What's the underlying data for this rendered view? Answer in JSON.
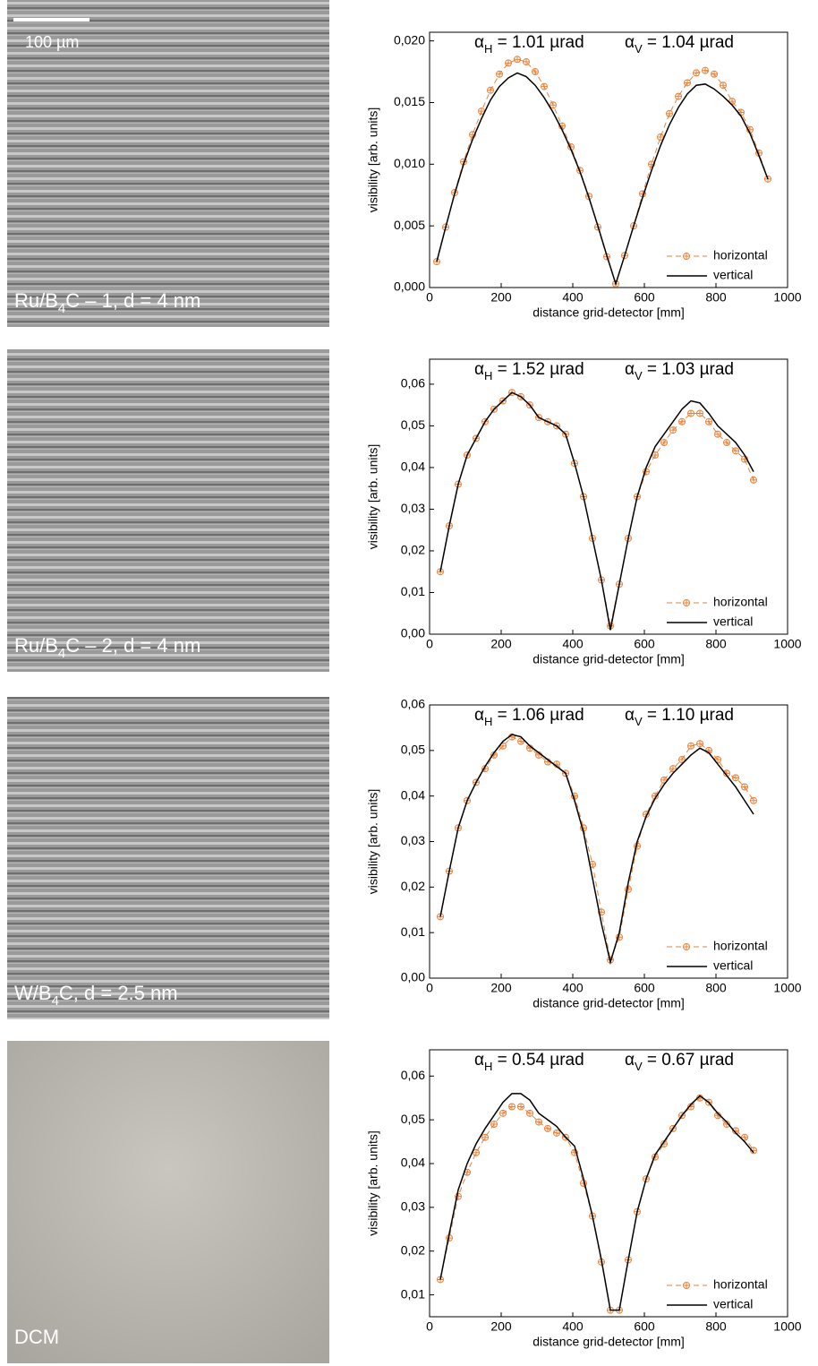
{
  "chart_data": [
    {
      "type": "line",
      "panel_label": {
        "pre": "Ru/B",
        "sub": "4",
        "post": "C – 1, d = 4 nm"
      },
      "scale_bar": "100 µm",
      "annotations": [
        {
          "symbol": "α",
          "sub": "H",
          "text": " = 1.01 µrad"
        },
        {
          "symbol": "α",
          "sub": "V",
          "text": " = 1.04 µrad"
        }
      ],
      "xlabel": "distance grid-detector [mm]",
      "ylabel": "visibility [arb. units]",
      "xlim": [
        0,
        1000
      ],
      "ylim": [
        0,
        0.0207
      ],
      "xticks": [
        0,
        200,
        400,
        600,
        800,
        1000
      ],
      "yticks": [
        {
          "value": 0,
          "label": "0,000"
        },
        {
          "value": 0.005,
          "label": "0,005"
        },
        {
          "value": 0.01,
          "label": "0,010"
        },
        {
          "value": 0.015,
          "label": "0,015"
        },
        {
          "value": 0.02,
          "label": "0,020"
        }
      ],
      "legend": "lower right",
      "x": [
        20,
        45,
        70,
        95,
        120,
        145,
        170,
        195,
        220,
        245,
        270,
        295,
        320,
        345,
        370,
        395,
        420,
        445,
        470,
        495,
        520,
        545,
        570,
        595,
        620,
        645,
        670,
        695,
        720,
        745,
        770,
        795,
        820,
        845,
        870,
        895,
        920,
        945
      ],
      "series": [
        {
          "name": "horizontal",
          "color": "#e8823a",
          "dash": true,
          "marker": "circle-plus",
          "values": [
            0.0021,
            0.0049,
            0.0077,
            0.0102,
            0.0124,
            0.0143,
            0.016,
            0.0173,
            0.0182,
            0.0185,
            0.0183,
            0.0175,
            0.0163,
            0.0148,
            0.0131,
            0.0114,
            0.0095,
            0.0074,
            0.0049,
            0.0025,
            0.0003,
            0.0026,
            0.005,
            0.0076,
            0.01,
            0.0122,
            0.0141,
            0.0155,
            0.0166,
            0.0174,
            0.0176,
            0.0173,
            0.0164,
            0.0151,
            0.0142,
            0.0128,
            0.0109,
            0.0088
          ]
        },
        {
          "name": "vertical",
          "color": "#000000",
          "values": [
            0.0021,
            0.0049,
            0.0076,
            0.01,
            0.012,
            0.0137,
            0.0152,
            0.0163,
            0.017,
            0.0174,
            0.0171,
            0.0164,
            0.0154,
            0.0142,
            0.0128,
            0.0112,
            0.0094,
            0.0073,
            0.005,
            0.0026,
            0.0003,
            0.0026,
            0.005,
            0.0073,
            0.0095,
            0.0115,
            0.0132,
            0.0146,
            0.0157,
            0.0164,
            0.0165,
            0.0161,
            0.0155,
            0.0148,
            0.0139,
            0.0125,
            0.0107,
            0.0088
          ]
        }
      ]
    },
    {
      "type": "line",
      "panel_label": {
        "pre": "Ru/B",
        "sub": "4",
        "post": "C – 2, d = 4 nm"
      },
      "annotations": [
        {
          "symbol": "α",
          "sub": "H",
          "text": " = 1.52 µrad"
        },
        {
          "symbol": "α",
          "sub": "V",
          "text": " = 1.03 µrad"
        }
      ],
      "xlabel": "distance grid-detector [mm]",
      "ylabel": "visibility [arb. units]",
      "xlim": [
        0,
        1000
      ],
      "ylim": [
        0,
        0.066
      ],
      "xticks": [
        0,
        200,
        400,
        600,
        800,
        1000
      ],
      "yticks": [
        {
          "value": 0,
          "label": "0,00"
        },
        {
          "value": 0.01,
          "label": "0,01"
        },
        {
          "value": 0.02,
          "label": "0,02"
        },
        {
          "value": 0.03,
          "label": "0,03"
        },
        {
          "value": 0.04,
          "label": "0,04"
        },
        {
          "value": 0.05,
          "label": "0,05"
        },
        {
          "value": 0.06,
          "label": "0,06"
        }
      ],
      "legend": "lower right",
      "x": [
        30,
        55,
        80,
        105,
        130,
        155,
        180,
        205,
        230,
        255,
        280,
        305,
        330,
        355,
        380,
        405,
        430,
        455,
        480,
        505,
        530,
        555,
        580,
        605,
        630,
        655,
        680,
        705,
        730,
        755,
        780,
        805,
        830,
        855,
        880,
        905
      ],
      "series": [
        {
          "name": "horizontal",
          "color": "#e8823a",
          "dash": true,
          "marker": "circle-plus",
          "values": [
            0.015,
            0.026,
            0.036,
            0.043,
            0.047,
            0.051,
            0.054,
            0.056,
            0.058,
            0.057,
            0.055,
            0.052,
            0.051,
            0.05,
            0.048,
            0.041,
            0.033,
            0.023,
            0.013,
            0.002,
            0.012,
            0.023,
            0.033,
            0.039,
            0.043,
            0.046,
            0.049,
            0.051,
            0.053,
            0.053,
            0.051,
            0.048,
            0.046,
            0.044,
            0.042,
            0.037
          ]
        },
        {
          "name": "vertical",
          "color": "#000000",
          "values": [
            0.015,
            0.026,
            0.036,
            0.043,
            0.047,
            0.051,
            0.054,
            0.056,
            0.058,
            0.057,
            0.055,
            0.052,
            0.051,
            0.05,
            0.048,
            0.041,
            0.033,
            0.023,
            0.013,
            0.001,
            0.012,
            0.023,
            0.033,
            0.04,
            0.045,
            0.048,
            0.051,
            0.054,
            0.056,
            0.0555,
            0.053,
            0.05,
            0.048,
            0.046,
            0.043,
            0.039
          ]
        }
      ]
    },
    {
      "type": "line",
      "panel_label": {
        "pre": "W/B",
        "sub": "4",
        "post": "C, d = 2.5 nm"
      },
      "annotations": [
        {
          "symbol": "α",
          "sub": "H",
          "text": " = 1.06 µrad"
        },
        {
          "symbol": "α",
          "sub": "V",
          "text": " = 1.10 µrad"
        }
      ],
      "xlabel": "distance grid-detector [mm]",
      "ylabel": "visibility [arb. units]",
      "xlim": [
        0,
        1000
      ],
      "ylim": [
        0,
        0.06
      ],
      "xticks": [
        0,
        200,
        400,
        600,
        800,
        1000
      ],
      "yticks": [
        {
          "value": 0,
          "label": "0,00"
        },
        {
          "value": 0.01,
          "label": "0,01"
        },
        {
          "value": 0.02,
          "label": "0,02"
        },
        {
          "value": 0.03,
          "label": "0,03"
        },
        {
          "value": 0.04,
          "label": "0,04"
        },
        {
          "value": 0.05,
          "label": "0,05"
        },
        {
          "value": 0.06,
          "label": "0,06"
        }
      ],
      "legend": "lower right",
      "x": [
        30,
        55,
        80,
        105,
        130,
        155,
        180,
        205,
        230,
        255,
        280,
        305,
        330,
        355,
        380,
        405,
        430,
        455,
        480,
        505,
        530,
        555,
        580,
        605,
        630,
        655,
        680,
        705,
        730,
        755,
        780,
        805,
        830,
        855,
        880,
        905
      ],
      "series": [
        {
          "name": "horizontal",
          "color": "#e8823a",
          "dash": true,
          "marker": "circle-plus",
          "values": [
            0.0135,
            0.0235,
            0.033,
            0.039,
            0.043,
            0.046,
            0.049,
            0.051,
            0.053,
            0.052,
            0.0505,
            0.049,
            0.0475,
            0.047,
            0.045,
            0.04,
            0.033,
            0.025,
            0.0145,
            0.004,
            0.009,
            0.0195,
            0.029,
            0.036,
            0.04,
            0.0435,
            0.046,
            0.048,
            0.051,
            0.0515,
            0.05,
            0.048,
            0.045,
            0.044,
            0.042,
            0.039
          ]
        },
        {
          "name": "vertical",
          "color": "#000000",
          "values": [
            0.0135,
            0.0235,
            0.033,
            0.039,
            0.043,
            0.0465,
            0.0495,
            0.052,
            0.0535,
            0.053,
            0.051,
            0.0495,
            0.048,
            0.0465,
            0.045,
            0.039,
            0.032,
            0.022,
            0.012,
            0.0035,
            0.01,
            0.021,
            0.03,
            0.0355,
            0.0395,
            0.0425,
            0.045,
            0.047,
            0.049,
            0.0505,
            0.0495,
            0.047,
            0.0445,
            0.042,
            0.039,
            0.036
          ]
        }
      ]
    },
    {
      "type": "line",
      "panel_label": {
        "pre": "DCM"
      },
      "annotations": [
        {
          "symbol": "α",
          "sub": "H",
          "text": " = 0.54 µrad"
        },
        {
          "symbol": "α",
          "sub": "V",
          "text": " = 0.67 µrad"
        }
      ],
      "xlabel": "distance grid-detector [mm]",
      "ylabel": "visibility [arb. units]",
      "xlim": [
        0,
        1000
      ],
      "ylim": [
        0.005,
        0.066
      ],
      "xticks": [
        0,
        200,
        400,
        600,
        800,
        1000
      ],
      "yticks": [
        {
          "value": 0.01,
          "label": "0,01"
        },
        {
          "value": 0.02,
          "label": "0,02"
        },
        {
          "value": 0.03,
          "label": "0,03"
        },
        {
          "value": 0.04,
          "label": "0,04"
        },
        {
          "value": 0.05,
          "label": "0,05"
        },
        {
          "value": 0.06,
          "label": "0,06"
        }
      ],
      "legend": "lower right",
      "x": [
        30,
        55,
        80,
        105,
        130,
        155,
        180,
        205,
        230,
        255,
        280,
        305,
        330,
        355,
        380,
        405,
        430,
        455,
        480,
        505,
        530,
        555,
        580,
        605,
        630,
        655,
        680,
        705,
        730,
        755,
        780,
        805,
        830,
        855,
        880,
        905
      ],
      "series": [
        {
          "name": "horizontal",
          "color": "#e8823a",
          "dash": true,
          "marker": "circle-plus",
          "values": [
            0.0135,
            0.023,
            0.0325,
            0.038,
            0.0425,
            0.046,
            0.049,
            0.0515,
            0.053,
            0.053,
            0.0515,
            0.0495,
            0.048,
            0.047,
            0.046,
            0.0425,
            0.0355,
            0.028,
            0.0175,
            0.0065,
            0.0065,
            0.018,
            0.029,
            0.0365,
            0.0415,
            0.0445,
            0.048,
            0.051,
            0.053,
            0.055,
            0.054,
            0.051,
            0.049,
            0.0475,
            0.046,
            0.043
          ]
        },
        {
          "name": "vertical",
          "color": "#000000",
          "values": [
            0.0135,
            0.024,
            0.034,
            0.04,
            0.0445,
            0.048,
            0.051,
            0.054,
            0.056,
            0.056,
            0.0545,
            0.0515,
            0.05,
            0.0485,
            0.046,
            0.044,
            0.0365,
            0.028,
            0.018,
            0.0065,
            0.0065,
            0.018,
            0.029,
            0.0365,
            0.042,
            0.045,
            0.048,
            0.051,
            0.0535,
            0.0555,
            0.054,
            0.0515,
            0.0495,
            0.047,
            0.045,
            0.0425
          ]
        }
      ]
    }
  ]
}
